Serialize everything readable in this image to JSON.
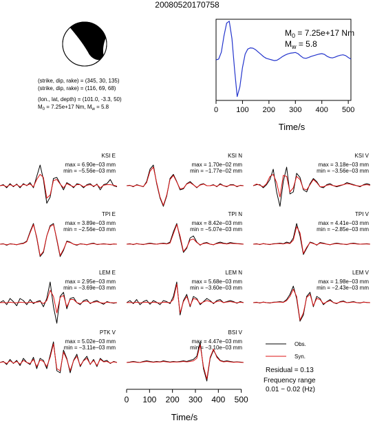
{
  "chart_data": {
    "type": "line",
    "title": "20080520170758",
    "colors": {
      "source_time_function": "#2233cc",
      "observed": "#000000",
      "synthetic": "#dd1111"
    },
    "mechanism": {
      "plane1": "(strike, dip, rake) = (345, 30, 135)",
      "plane2": "(strike, dip, rake) = (116, 69, 68)",
      "location": "(lon., lat, depth) = (101.0, -3.3, 50)",
      "moment_prefix": "M",
      "moment_sub": "0",
      "moment_mid": " = 7.25e+17 Nm, M",
      "moment_sub2": "w",
      "moment_tail": " = 5.8"
    },
    "stf": {
      "m0_prefix": "M",
      "m0_sub": "0",
      "m0_value": " = 7.25e+17 Nm",
      "mw_prefix": "M",
      "mw_sub": "w",
      "mw_value": " = 5.8",
      "xlabel": "Time/s",
      "xticks": [
        0,
        100,
        200,
        300,
        400,
        500
      ],
      "xlim": [
        0,
        510
      ],
      "ylim": [
        -1.05,
        1.05
      ],
      "x": [
        0,
        10,
        20,
        30,
        40,
        50,
        60,
        70,
        80,
        90,
        100,
        110,
        120,
        130,
        140,
        150,
        160,
        170,
        180,
        190,
        200,
        210,
        220,
        230,
        240,
        250,
        260,
        270,
        280,
        290,
        300,
        310,
        320,
        330,
        340,
        350,
        360,
        370,
        380,
        390,
        400,
        410,
        420,
        430,
        440,
        450,
        460,
        470,
        480,
        490,
        500,
        510
      ],
      "y": [
        0.0,
        0.02,
        0.2,
        0.62,
        0.95,
        1.0,
        0.55,
        -0.25,
        -0.95,
        -0.7,
        -0.2,
        0.15,
        0.28,
        0.31,
        0.3,
        0.26,
        0.2,
        0.14,
        0.08,
        0.04,
        0.02,
        0.0,
        -0.02,
        -0.01,
        0.03,
        0.08,
        0.12,
        0.15,
        0.17,
        0.18,
        0.19,
        0.16,
        0.1,
        0.05,
        0.04,
        0.06,
        0.09,
        0.11,
        0.13,
        0.15,
        0.16,
        0.14,
        0.09,
        0.06,
        0.05,
        0.07,
        0.1,
        0.12,
        0.13,
        0.11,
        0.06,
        0.02
      ]
    },
    "waveform_xlabel": "Time/s",
    "waveform_xticks": [
      0,
      100,
      200,
      300,
      400,
      500
    ],
    "waveform_xlim": [
      0,
      510
    ],
    "stations": [
      {
        "name": "KSI E",
        "max": "max = 6.90e−03 mm",
        "min": "min = −5.56e−03 mm",
        "row": 0,
        "col": 0,
        "obs": [
          0,
          0.05,
          -0.1,
          0.1,
          -0.05,
          0.08,
          -0.1,
          0.1,
          0,
          0.15,
          -0.1,
          0.45,
          1.0,
          0.3,
          -0.85,
          -0.55,
          0.35,
          0.4,
          0.1,
          -0.2,
          0.15,
          0.05,
          -0.1,
          0.1,
          0.05,
          -0.1,
          0.05,
          0.1,
          -0.05,
          0.08,
          -0.2,
          0.05,
          0.1,
          0.3,
          0.0,
          -0.05
        ],
        "syn": [
          0,
          0.02,
          -0.05,
          0.05,
          -0.02,
          0.05,
          -0.05,
          0.06,
          0.02,
          0.08,
          -0.05,
          0.3,
          0.55,
          0.4,
          -0.6,
          -0.45,
          0.25,
          0.3,
          0.08,
          -0.1,
          0.1,
          0.02,
          -0.05,
          0.05,
          0.05,
          -0.05,
          0.02,
          0.05,
          -0.02,
          0.05,
          -0.1,
          0.02,
          0.05,
          0.05,
          0.02,
          -0.02
        ]
      },
      {
        "name": "KSI N",
        "max": "max = 1.70e−02 mm",
        "min": "min = −1.77e−02 mm",
        "row": 0,
        "col": 1,
        "obs": [
          0,
          0.02,
          -0.05,
          0.05,
          0,
          -0.05,
          0.2,
          0.8,
          1.0,
          0.1,
          -0.6,
          -1.0,
          -0.5,
          0.35,
          0.55,
          0.2,
          -0.2,
          -0.15,
          0.1,
          0.2,
          0.05,
          -0.1,
          0.05,
          0.1,
          0,
          0,
          0.05,
          -0.05,
          0.1,
          0,
          -0.05,
          0.05,
          0.05,
          -0.05,
          0.02,
          0
        ],
        "syn": [
          0,
          0.01,
          -0.03,
          0.03,
          0,
          -0.04,
          0.15,
          0.7,
          0.9,
          0.15,
          -0.55,
          -0.95,
          -0.45,
          0.3,
          0.5,
          0.18,
          -0.15,
          -0.12,
          0.08,
          0.15,
          0.04,
          -0.08,
          0.03,
          0.08,
          0,
          0,
          0.03,
          -0.03,
          0.06,
          0,
          -0.03,
          0.03,
          0.03,
          -0.03,
          0.01,
          0
        ]
      },
      {
        "name": "KSI V",
        "max": "max = 3.18e−03 mm",
        "min": "min = −3.56e−03 mm",
        "row": 0,
        "col": 2,
        "obs": [
          0,
          0.05,
          0.05,
          -0.1,
          0.05,
          0.3,
          0.8,
          -0.3,
          -1.0,
          0.2,
          0.9,
          -0.4,
          -0.3,
          0.6,
          0.4,
          -0.2,
          -0.3,
          0.1,
          0.35,
          0.2,
          -0.05,
          -0.1,
          0.05,
          0.1,
          0,
          -0.05,
          0,
          0.05,
          0.15,
          0.1,
          0.05,
          0,
          -0.05,
          0.05,
          0.1,
          0.05
        ],
        "syn": [
          0,
          0.08,
          0.02,
          -0.05,
          0.1,
          0.45,
          0.55,
          0.15,
          -0.55,
          0.5,
          0.45,
          -0.3,
          -0.1,
          0.45,
          0.3,
          -0.15,
          -0.2,
          0.05,
          0.3,
          0.15,
          -0.05,
          -0.05,
          0.02,
          0.05,
          0,
          -0.02,
          0.02,
          0.05,
          0.1,
          0.08,
          0.03,
          0,
          -0.02,
          0.03,
          0.05,
          0.02
        ]
      },
      {
        "name": "TPI E",
        "max": "max = 3.89e−03 mm",
        "min": "min = −2.56e−03 mm",
        "row": 1,
        "col": 0,
        "obs": [
          0,
          0.02,
          -0.05,
          0.02,
          0,
          -0.03,
          0.02,
          0.05,
          0.15,
          0.6,
          1.0,
          0.3,
          -0.6,
          -0.4,
          0.4,
          0.9,
          1.0,
          0.2,
          -0.6,
          -0.3,
          0.15,
          0.1,
          0,
          -0.05,
          0.02,
          0,
          -0.03,
          0.02,
          0.05,
          -0.02,
          0,
          0.02,
          0,
          -0.02,
          0.01,
          0
        ],
        "syn": [
          0,
          0.01,
          -0.03,
          0.01,
          0,
          -0.02,
          0.01,
          0.03,
          0.12,
          0.55,
          0.95,
          0.35,
          -0.55,
          -0.35,
          0.4,
          0.85,
          0.95,
          0.25,
          -0.55,
          -0.25,
          0.12,
          0.08,
          0,
          -0.03,
          0.01,
          0,
          -0.02,
          0.01,
          0.03,
          -0.01,
          0,
          0.01,
          0,
          -0.01,
          0.01,
          0
        ]
      },
      {
        "name": "TPI N",
        "max": "max = 8.42e−03 mm",
        "min": "min = −5.07e−03 mm",
        "row": 1,
        "col": 1,
        "obs": [
          0,
          0.02,
          -0.02,
          0.03,
          0,
          -0.02,
          0.02,
          0.05,
          0.02,
          0,
          0.03,
          0.05,
          0.02,
          0.1,
          0.6,
          1.0,
          0.3,
          -0.4,
          -0.2,
          0.3,
          0.4,
          0.1,
          -0.05,
          0.05,
          0.08,
          0,
          -0.03,
          0.05,
          0.1,
          0.05,
          0.02,
          0.08,
          0.05,
          0.03,
          0.02,
          0
        ],
        "syn": [
          0,
          0.01,
          -0.01,
          0.02,
          0,
          -0.01,
          0.01,
          0.03,
          0.01,
          0,
          0.02,
          0.03,
          0.01,
          0.05,
          0.5,
          0.95,
          0.4,
          -0.35,
          -0.15,
          0.2,
          0.25,
          0.08,
          -0.03,
          0.03,
          0.05,
          0,
          -0.02,
          0.03,
          0.05,
          0.03,
          0.01,
          0.04,
          0.03,
          0.02,
          0.01,
          0
        ]
      },
      {
        "name": "TPI V",
        "max": "max = 4.41e−03 mm",
        "min": "min = −2.85e−03 mm",
        "row": 1,
        "col": 2,
        "obs": [
          0,
          0.02,
          -0.02,
          0.03,
          0,
          -0.02,
          0.02,
          0.03,
          0.05,
          0.02,
          0.1,
          0.05,
          0.3,
          1.0,
          0.4,
          -0.5,
          -0.2,
          0.1,
          0.05,
          -0.05,
          0.08,
          0.05,
          0,
          -0.03,
          0.02,
          0.05,
          0.02,
          0,
          -0.02,
          0.03,
          0.05,
          0.02,
          0,
          0.01,
          0.02,
          0
        ],
        "syn": [
          0,
          0.01,
          -0.01,
          0.02,
          0,
          -0.01,
          0.01,
          0.02,
          0.03,
          0.01,
          0.05,
          0.03,
          0.2,
          0.85,
          0.55,
          -0.45,
          -0.15,
          0.08,
          0.03,
          -0.03,
          0.05,
          0.03,
          0,
          -0.02,
          0.01,
          0.03,
          0.01,
          0,
          -0.01,
          0.02,
          0.03,
          0.01,
          0,
          0.01,
          0.01,
          0
        ]
      },
      {
        "name": "LEM E",
        "max": "max = 2.95e−03 mm",
        "min": "min = −3.69e−03 mm",
        "row": 2,
        "col": 0,
        "obs": [
          0,
          0.1,
          -0.1,
          0.2,
          0.05,
          -0.15,
          0.2,
          0.1,
          -0.1,
          0.15,
          -0.05,
          0.05,
          0.1,
          -0.2,
          0.2,
          1.0,
          -0.2,
          -1.0,
          0.3,
          0.5,
          -0.3,
          0.2,
          0.25,
          0,
          -0.1,
          0.1,
          0.15,
          -0.05,
          0.05,
          0.1,
          0,
          -0.08,
          0.05,
          0,
          -0.03,
          0
        ],
        "syn": [
          0,
          0.01,
          -0.01,
          0.02,
          0,
          -0.01,
          0.02,
          0.01,
          -0.01,
          0.02,
          0,
          0.02,
          0.05,
          -0.05,
          0.1,
          0.6,
          0.3,
          -0.5,
          0.25,
          0.35,
          -0.2,
          0.15,
          0.15,
          0,
          -0.05,
          0.05,
          0.08,
          -0.02,
          0.02,
          0.05,
          0,
          -0.03,
          0.02,
          0,
          -0.01,
          0
        ]
      },
      {
        "name": "LEM N",
        "max": "max = 5.68e−03 mm",
        "min": "min = −3.60e−03 mm",
        "row": 2,
        "col": 1,
        "obs": [
          0,
          0.1,
          -0.05,
          0.15,
          -0.1,
          0.05,
          0.12,
          -0.08,
          0.1,
          0.02,
          -0.1,
          0.1,
          0.05,
          -0.05,
          0.3,
          1.0,
          -0.6,
          0.1,
          0.4,
          -0.2,
          0.3,
          0.2,
          -0.1,
          0.05,
          0.2,
          0.1,
          -0.05,
          0.1,
          0.15,
          0,
          0.05,
          0.1,
          0.05,
          -0.03,
          0.05,
          0
        ],
        "syn": [
          0,
          0.01,
          -0.01,
          0.02,
          -0.01,
          0.01,
          0.02,
          -0.01,
          0.02,
          0,
          -0.02,
          0.02,
          0.01,
          0,
          0.15,
          0.9,
          -0.5,
          0.05,
          0.3,
          -0.15,
          0.2,
          0.15,
          -0.05,
          0.03,
          0.1,
          0.05,
          -0.02,
          0.05,
          0.08,
          0,
          0.03,
          0.05,
          0.02,
          -0.01,
          0.02,
          0
        ]
      },
      {
        "name": "LEM V",
        "max": "max = 1.98e−03 mm",
        "min": "min = −2.43e−03 mm",
        "row": 2,
        "col": 2,
        "obs": [
          0,
          0.02,
          -0.02,
          0.03,
          0,
          -0.02,
          0.02,
          0.03,
          0.05,
          0.02,
          0.15,
          0.4,
          0.8,
          0.2,
          -0.9,
          -0.6,
          0.3,
          0.5,
          -0.2,
          0.3,
          0.2,
          -0.1,
          0.05,
          0.15,
          0,
          -0.05,
          0.05,
          0.08,
          0,
          0.02,
          0.05,
          0,
          -0.02,
          0.03,
          0.01,
          0
        ],
        "syn": [
          0,
          0.01,
          -0.01,
          0.02,
          0,
          -0.01,
          0.01,
          0.02,
          0.03,
          0.01,
          0.1,
          0.3,
          0.65,
          0.3,
          -0.85,
          -0.5,
          0.25,
          0.4,
          -0.15,
          0.2,
          0.15,
          -0.05,
          0.03,
          0.1,
          0,
          -0.03,
          0.03,
          0.05,
          0,
          0.01,
          0.03,
          0,
          -0.01,
          0.02,
          0.01,
          0
        ]
      },
      {
        "name": "PTK V",
        "max": "max = 5.02e−03 mm",
        "min": "min = −3.11e−03 mm",
        "row": 3,
        "col": 0,
        "obs": [
          0,
          0.05,
          -0.1,
          0.15,
          -0.05,
          0.1,
          -0.15,
          0.2,
          0,
          -0.1,
          0.25,
          -0.3,
          0.2,
          0.1,
          -0.3,
          0.35,
          1.0,
          -0.4,
          -0.5,
          0.6,
          0.2,
          -0.5,
          0.1,
          0.4,
          -0.2,
          0.1,
          0.3,
          -0.1,
          0.15,
          -0.2,
          0.2,
          0.05,
          0.1,
          -0.05,
          0.05,
          0
        ],
        "syn": [
          0,
          0.03,
          -0.05,
          0.08,
          -0.03,
          0.05,
          -0.08,
          0.1,
          0,
          -0.05,
          0.15,
          -0.2,
          0.12,
          0.05,
          -0.2,
          0.25,
          0.9,
          -0.3,
          -0.4,
          0.5,
          0.15,
          -0.4,
          0.08,
          0.3,
          -0.15,
          0.08,
          0.2,
          -0.08,
          0.1,
          -0.15,
          0.15,
          0.03,
          0.05,
          -0.03,
          0.03,
          0
        ]
      },
      {
        "name": "BSI V",
        "max": "max = 4.47e−03 mm",
        "min": "min = −3.10e−03 mm",
        "row": 3,
        "col": 1,
        "obs": [
          0,
          0.02,
          0.05,
          0.02,
          0,
          0.05,
          0.08,
          0.05,
          0.02,
          0.05,
          0.03,
          0.08,
          0.05,
          0.02,
          0.05,
          0.03,
          0.05,
          0.08,
          0.05,
          0.1,
          0.15,
          0.3,
          1.0,
          -0.3,
          -0.9,
          0.2,
          0.6,
          0.3,
          0.1,
          0.05,
          0.08,
          0.05,
          0.02,
          0.03,
          0.02,
          0
        ],
        "syn": [
          0,
          0.01,
          0.03,
          0.01,
          0,
          0.03,
          0.05,
          0.03,
          0.01,
          0.03,
          0.02,
          0.05,
          0.03,
          0.01,
          0.03,
          0.02,
          0.03,
          0.05,
          0.03,
          0.05,
          0.08,
          0.2,
          0.85,
          -0.2,
          -0.8,
          0.25,
          0.65,
          0.25,
          0.08,
          0.03,
          0.05,
          0.03,
          0.01,
          0.02,
          0.01,
          0
        ]
      }
    ],
    "legend": {
      "observed": "Obs.",
      "synthetic": "Syn."
    },
    "residual": "Residual = 0.13",
    "frequency_label": "Frequency range",
    "frequency_value": "0.01 − 0.02 (Hz)"
  }
}
